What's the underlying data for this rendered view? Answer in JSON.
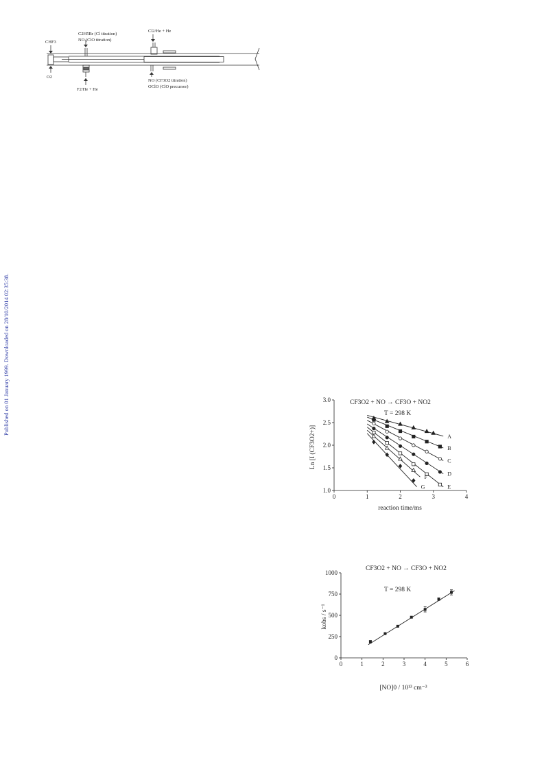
{
  "side_note": "Published on 01 January 1999. Downloaded on 28/10/2014 02:35:38.",
  "apparatus": {
    "labels": {
      "chf3": "CHF3",
      "o2": "O2",
      "c2h5br": "C2H5Br (Cl titration)",
      "no_clo": "NO (ClO titration)",
      "f2": "F2/He + He",
      "cl2": "Cl2/He + He",
      "no_cf3o2": "NO (CF3O2 titration)",
      "oclo": "OClO (ClO precursor)"
    }
  },
  "chart_data": [
    {
      "type": "scatter",
      "title": "CF3O2 + NO → CF3O + NO2",
      "annotation": "T = 298 K",
      "xlabel": "reaction time/ms",
      "ylabel": "Ln [I (CF3O2+)]",
      "xlim": [
        0,
        4
      ],
      "ylim": [
        1.0,
        3.0
      ],
      "xticks": [
        "0",
        "1",
        "2",
        "3",
        "4"
      ],
      "yticks": [
        "1.0",
        "1.5",
        "2.0",
        "2.5",
        "3.0"
      ],
      "series": [
        {
          "name": "A",
          "marker": "triangle-filled",
          "fit": [
            [
              1.0,
              2.66
            ],
            [
              3.3,
              2.2
            ]
          ],
          "points": [
            [
              1.2,
              2.6
            ],
            [
              1.6,
              2.53
            ],
            [
              2.0,
              2.47
            ],
            [
              2.4,
              2.39
            ],
            [
              2.8,
              2.31
            ],
            [
              3.0,
              2.27
            ]
          ]
        },
        {
          "name": "B",
          "marker": "square-filled",
          "fit": [
            [
              1.0,
              2.62
            ],
            [
              3.3,
              1.94
            ]
          ],
          "points": [
            [
              1.2,
              2.56
            ],
            [
              1.6,
              2.42
            ],
            [
              2.0,
              2.31
            ],
            [
              2.4,
              2.19
            ],
            [
              2.8,
              2.08
            ],
            [
              3.2,
              1.97
            ]
          ]
        },
        {
          "name": "C",
          "marker": "circle-open",
          "fit": [
            [
              1.0,
              2.55
            ],
            [
              3.3,
              1.66
            ]
          ],
          "points": [
            [
              1.2,
              2.48
            ],
            [
              1.6,
              2.3
            ],
            [
              2.0,
              2.15
            ],
            [
              2.4,
              2.0
            ],
            [
              2.8,
              1.86
            ],
            [
              3.2,
              1.7
            ]
          ]
        },
        {
          "name": "D",
          "marker": "circle-filled",
          "fit": [
            [
              1.0,
              2.47
            ],
            [
              3.3,
              1.37
            ]
          ],
          "points": [
            [
              1.2,
              2.37
            ],
            [
              1.6,
              2.17
            ],
            [
              2.0,
              1.98
            ],
            [
              2.4,
              1.8
            ],
            [
              2.8,
              1.6
            ],
            [
              3.2,
              1.41
            ]
          ]
        },
        {
          "name": "E",
          "marker": "square-open",
          "fit": [
            [
              1.0,
              2.4
            ],
            [
              3.3,
              1.08
            ]
          ],
          "points": [
            [
              1.2,
              2.28
            ],
            [
              1.6,
              2.05
            ],
            [
              2.0,
              1.82
            ],
            [
              2.4,
              1.58
            ],
            [
              2.8,
              1.36
            ],
            [
              3.2,
              1.13
            ]
          ]
        },
        {
          "name": "F",
          "marker": "triangle-open",
          "fit": [
            [
              1.0,
              2.33
            ],
            [
              2.6,
              1.3
            ]
          ],
          "points": [
            [
              1.2,
              2.2
            ],
            [
              1.6,
              1.94
            ],
            [
              2.0,
              1.7
            ],
            [
              2.4,
              1.45
            ]
          ]
        },
        {
          "name": "G",
          "marker": "diamond-filled",
          "fit": [
            [
              1.0,
              2.26
            ],
            [
              2.5,
              1.08
            ]
          ],
          "points": [
            [
              1.2,
              2.07
            ],
            [
              1.6,
              1.79
            ],
            [
              2.0,
              1.54
            ],
            [
              2.4,
              1.22
            ]
          ]
        }
      ]
    },
    {
      "type": "scatter",
      "title": "CF3O2 + NO → CF3O + NO2",
      "annotation": "T = 298 K",
      "xlabel": "[NO]0 / 10¹³ cm⁻³",
      "ylabel": "kobs / s⁻¹",
      "xlim": [
        0,
        6
      ],
      "ylim": [
        0,
        1000
      ],
      "xticks": [
        "0",
        "1",
        "2",
        "3",
        "4",
        "5",
        "6"
      ],
      "yticks": [
        "0",
        "250",
        "500",
        "750",
        "1000"
      ],
      "fit": [
        [
          1.3,
          155
        ],
        [
          5.4,
          790
        ]
      ],
      "points": [
        {
          "x": 1.4,
          "y": 190,
          "err": 15
        },
        {
          "x": 2.1,
          "y": 285,
          "err": 0
        },
        {
          "x": 2.7,
          "y": 372,
          "err": 0
        },
        {
          "x": 3.35,
          "y": 478,
          "err": 0
        },
        {
          "x": 4.0,
          "y": 570,
          "err": 30
        },
        {
          "x": 4.65,
          "y": 690,
          "err": 15
        },
        {
          "x": 5.25,
          "y": 770,
          "err": 30
        }
      ]
    }
  ]
}
